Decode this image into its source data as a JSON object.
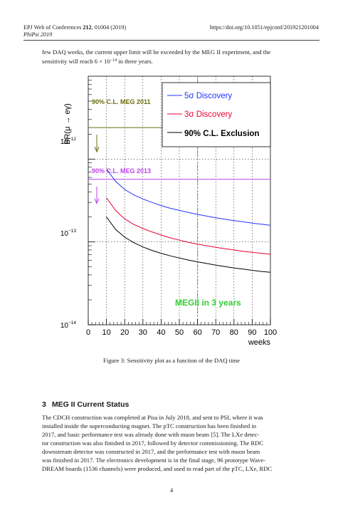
{
  "header": {
    "journal_pre": "EPJ Web of Conferences ",
    "volume": "212",
    "journal_post": ", 01004 (2019)",
    "conference": "PhiPsi 2019",
    "doi": "https://doi.org/10.1051/epjconf/201921201004"
  },
  "top_paragraph": {
    "line1": "few DAQ weeks, the current upper limit will be exceeded by the MEG II experiment, and the",
    "line2_pre": "sensitivity will reach 6 × 10",
    "line2_exp": "−14",
    "line2_post": " in three years."
  },
  "figure": {
    "caption": "Figure 3: Sensitivity plot as a function of the DAQ time"
  },
  "chart_data": {
    "type": "line",
    "ylabel": "BR(μ → eγ)",
    "xlabel": "weeks",
    "xlim": [
      0,
      100
    ],
    "ylim": [
      1e-14,
      1e-11
    ],
    "yscale": "log",
    "grid": true,
    "x_ticks": [
      "0",
      "10",
      "20",
      "30",
      "40",
      "50",
      "60",
      "70",
      "80",
      "90",
      "100"
    ],
    "y_ticks": [
      {
        "value": 1e-12,
        "base": "10",
        "exp": "−12"
      },
      {
        "value": 1e-13,
        "base": "10",
        "exp": "−13"
      },
      {
        "value": 1e-14,
        "base": "10",
        "exp": "−14"
      }
    ],
    "legend": {
      "placement": "top-right",
      "entries": [
        {
          "label": "5σ Discovery",
          "color": "#2233ff"
        },
        {
          "label": "3σ Discovery",
          "color": "#ee0033"
        },
        {
          "label": "90% C.L. Exclusion",
          "color": "#000000"
        }
      ]
    },
    "series": [
      {
        "name": "5σ Discovery",
        "color": "#2233ff",
        "x": [
          10,
          15,
          20,
          25,
          30,
          35,
          40,
          45,
          50,
          55,
          60,
          65,
          70,
          75,
          80,
          85,
          90,
          95,
          100
        ],
        "y": [
          7.6e-13,
          5.4e-13,
          4.3e-13,
          3.7e-13,
          3.3e-13,
          3e-13,
          2.75e-13,
          2.55e-13,
          2.4e-13,
          2.27e-13,
          2.15e-13,
          2.05e-13,
          1.96e-13,
          1.88e-13,
          1.81e-13,
          1.75e-13,
          1.69e-13,
          1.64e-13,
          1.59e-13
        ]
      },
      {
        "name": "3σ Discovery",
        "color": "#ee0033",
        "x": [
          10,
          15,
          20,
          25,
          30,
          35,
          40,
          45,
          50,
          55,
          60,
          65,
          70,
          75,
          80,
          85,
          90,
          95,
          100
        ],
        "y": [
          3.4e-13,
          2.4e-13,
          1.9e-13,
          1.63e-13,
          1.45e-13,
          1.32e-13,
          1.21e-13,
          1.12e-13,
          1.05e-13,
          9.9e-14,
          9.4e-14,
          9e-14,
          8.6e-14,
          8.3e-14,
          8e-14,
          7.7e-14,
          7.5e-14,
          7.3e-14,
          7.1e-14
        ]
      },
      {
        "name": "90% C.L. Exclusion",
        "color": "#000000",
        "x": [
          10,
          15,
          20,
          25,
          30,
          35,
          40,
          45,
          50,
          55,
          60,
          65,
          70,
          75,
          80,
          85,
          90,
          95,
          100
        ],
        "y": [
          2e-13,
          1.42e-13,
          1.14e-13,
          9.8e-14,
          8.7e-14,
          7.9e-14,
          7.3e-14,
          6.8e-14,
          6.4e-14,
          6.05e-14,
          5.75e-14,
          5.5e-14,
          5.25e-14,
          5.05e-14,
          4.85e-14,
          4.7e-14,
          4.55e-14,
          4.4e-14,
          4.3e-14
        ]
      }
    ],
    "reference_lines": [
      {
        "label": "90% C.L.  MEG 2011",
        "value": 2.4e-12,
        "color": "#6b6b10"
      },
      {
        "label": "90% C.L.  MEG 2013",
        "value": 5.7e-13,
        "color": "#bb44ee"
      }
    ],
    "vertical_marker": {
      "label": "MEGII in 3 years",
      "x": 60,
      "color": "#33cc33"
    }
  },
  "section": {
    "number": "3",
    "title": "MEG II Current Status"
  },
  "body_lines": [
    "The CDCH construction was completed at Pisa in July 2018, and sent to PSI, where it was",
    "installed inside the superconducting magnet.  The pTC construction has been finished in",
    "2017, and basic performance test was already done with muon beam [5].  The LXe detec-",
    "tor construction was also finished in 2017, followed by detector commissioning. The RDC",
    "downstream detector was constructed in 2017, and the performance test with muon beam",
    "was finished in 2017. The electronics development is in the final stage, 96 prototype Wave-",
    "DREAM boards (1536 channels) were produced, and used to read part of the pTC, LXe, RDC"
  ],
  "page_number": "4"
}
